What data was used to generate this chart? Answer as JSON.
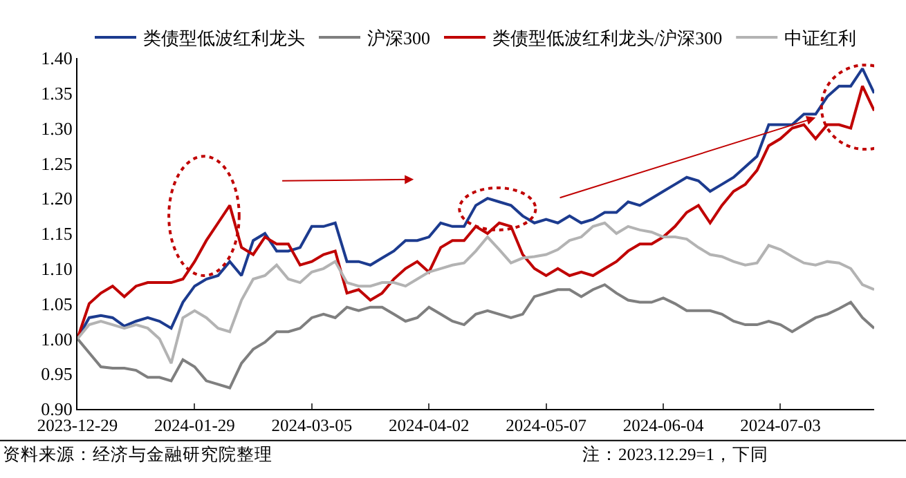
{
  "chart_data": {
    "type": "line",
    "categories": [
      "2023-12-29",
      null,
      null,
      null,
      null,
      null,
      null,
      null,
      null,
      null,
      "2024-01-29",
      null,
      null,
      null,
      null,
      null,
      null,
      null,
      null,
      null,
      "2024-03-05",
      null,
      null,
      null,
      null,
      null,
      null,
      null,
      null,
      null,
      "2024-04-02",
      null,
      null,
      null,
      null,
      null,
      null,
      null,
      null,
      null,
      "2024-05-07",
      null,
      null,
      null,
      null,
      null,
      null,
      null,
      null,
      null,
      "2024-06-04",
      null,
      null,
      null,
      null,
      null,
      null,
      null,
      null,
      null,
      "2024-07-03",
      null,
      null,
      null,
      null,
      null,
      null,
      null,
      null
    ],
    "series": [
      {
        "name": "类债型低波红利龙头",
        "color": "#1c3b8f",
        "values": [
          1.0,
          1.03,
          1.033,
          1.03,
          1.018,
          1.025,
          1.03,
          1.025,
          1.015,
          1.052,
          1.075,
          1.085,
          1.09,
          1.11,
          1.09,
          1.14,
          1.15,
          1.125,
          1.125,
          1.13,
          1.16,
          1.16,
          1.165,
          1.11,
          1.11,
          1.105,
          1.115,
          1.125,
          1.14,
          1.14,
          1.145,
          1.165,
          1.16,
          1.16,
          1.19,
          1.2,
          1.195,
          1.19,
          1.175,
          1.165,
          1.17,
          1.165,
          1.175,
          1.165,
          1.17,
          1.18,
          1.18,
          1.195,
          1.19,
          1.2,
          1.21,
          1.22,
          1.23,
          1.225,
          1.21,
          1.22,
          1.23,
          1.245,
          1.26,
          1.305,
          1.305,
          1.305,
          1.32,
          1.32,
          1.345,
          1.36,
          1.36,
          1.385,
          1.35
        ]
      },
      {
        "name": "沪深300",
        "color": "#7f7f7f",
        "values": [
          1.0,
          0.98,
          0.96,
          0.958,
          0.958,
          0.955,
          0.945,
          0.945,
          0.94,
          0.97,
          0.96,
          0.94,
          0.935,
          0.93,
          0.965,
          0.985,
          0.995,
          1.01,
          1.01,
          1.015,
          1.03,
          1.035,
          1.03,
          1.045,
          1.04,
          1.045,
          1.045,
          1.035,
          1.025,
          1.03,
          1.045,
          1.035,
          1.025,
          1.02,
          1.035,
          1.04,
          1.035,
          1.03,
          1.035,
          1.06,
          1.065,
          1.07,
          1.07,
          1.06,
          1.07,
          1.077,
          1.065,
          1.055,
          1.052,
          1.052,
          1.058,
          1.05,
          1.04,
          1.04,
          1.04,
          1.035,
          1.025,
          1.02,
          1.02,
          1.025,
          1.02,
          1.01,
          1.02,
          1.03,
          1.035,
          1.043,
          1.052,
          1.03,
          1.015
        ]
      },
      {
        "name": "类债型低波红利龙头/沪深300",
        "color": "#c00000",
        "values": [
          1.0,
          1.05,
          1.065,
          1.075,
          1.06,
          1.075,
          1.08,
          1.08,
          1.08,
          1.085,
          1.11,
          1.14,
          1.165,
          1.19,
          1.13,
          1.12,
          1.145,
          1.135,
          1.135,
          1.105,
          1.11,
          1.12,
          1.125,
          1.065,
          1.07,
          1.055,
          1.065,
          1.085,
          1.1,
          1.11,
          1.095,
          1.13,
          1.14,
          1.14,
          1.16,
          1.15,
          1.165,
          1.16,
          1.12,
          1.1,
          1.09,
          1.1,
          1.09,
          1.095,
          1.09,
          1.1,
          1.11,
          1.125,
          1.135,
          1.135,
          1.145,
          1.16,
          1.18,
          1.19,
          1.165,
          1.19,
          1.21,
          1.22,
          1.24,
          1.275,
          1.285,
          1.3,
          1.305,
          1.285,
          1.305,
          1.305,
          1.3,
          1.36,
          1.325
        ]
      },
      {
        "name": "中证红利",
        "color": "#b3b3b3",
        "values": [
          1.0,
          1.02,
          1.025,
          1.02,
          1.015,
          1.02,
          1.015,
          1.0,
          0.965,
          1.03,
          1.04,
          1.03,
          1.015,
          1.01,
          1.055,
          1.085,
          1.09,
          1.105,
          1.085,
          1.08,
          1.095,
          1.1,
          1.11,
          1.08,
          1.075,
          1.075,
          1.08,
          1.08,
          1.075,
          1.085,
          1.095,
          1.1,
          1.105,
          1.108,
          1.125,
          1.145,
          1.127,
          1.108,
          1.115,
          1.117,
          1.12,
          1.127,
          1.14,
          1.145,
          1.16,
          1.165,
          1.15,
          1.16,
          1.155,
          1.152,
          1.145,
          1.145,
          1.142,
          1.13,
          1.12,
          1.117,
          1.11,
          1.105,
          1.108,
          1.133,
          1.127,
          1.117,
          1.108,
          1.105,
          1.11,
          1.108,
          1.1,
          1.077,
          1.07
        ]
      }
    ],
    "ylim": [
      0.9,
      1.4
    ],
    "yticks": [
      {
        "value": 0.9,
        "label": "0.90"
      },
      {
        "value": 0.95,
        "label": "0.95"
      },
      {
        "value": 1.0,
        "label": "1.00"
      },
      {
        "value": 1.05,
        "label": "1.05"
      },
      {
        "value": 1.1,
        "label": "1.10"
      },
      {
        "value": 1.15,
        "label": "1.15"
      },
      {
        "value": 1.2,
        "label": "1.20"
      },
      {
        "value": 1.25,
        "label": "1.25"
      },
      {
        "value": 1.3,
        "label": "1.30"
      },
      {
        "value": 1.35,
        "label": "1.35"
      },
      {
        "value": 1.4,
        "label": "1.40"
      }
    ],
    "legend": "top",
    "marker": "none",
    "line_style": "solid",
    "annotations": [
      "资料来源：经济与金融研究院整理",
      "注：2023.12.29=1，下同"
    ]
  }
}
